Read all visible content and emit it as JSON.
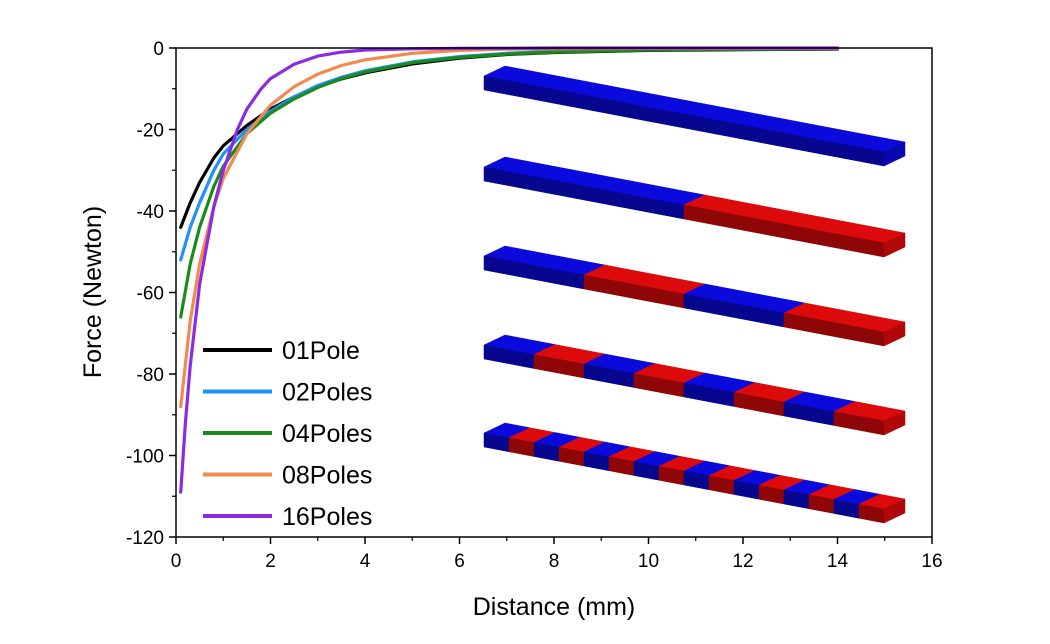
{
  "chart_data": {
    "type": "line",
    "xlabel": "Distance (mm)",
    "ylabel": "Force (Newton)",
    "xlim": [
      0,
      16
    ],
    "ylim": [
      -120,
      0
    ],
    "x_ticks": [
      0,
      2,
      4,
      6,
      8,
      10,
      12,
      14,
      16
    ],
    "y_ticks": [
      0,
      -20,
      -40,
      -60,
      -80,
      -100,
      -120
    ],
    "grid": false,
    "legend_position": "bottom-left",
    "series": [
      {
        "name": "01Pole",
        "color": "#000000",
        "x": [
          0.1,
          0.3,
          0.5,
          0.8,
          1.0,
          1.5,
          2.0,
          2.5,
          3.0,
          3.5,
          4.0,
          5.0,
          6.0,
          7.0,
          8.0,
          10.0,
          12.0,
          14.0
        ],
        "y": [
          -44,
          -38,
          -33,
          -27,
          -24,
          -19,
          -15,
          -12,
          -9.5,
          -7.6,
          -6.1,
          -3.9,
          -2.5,
          -1.6,
          -1.1,
          -0.6,
          -0.4,
          -0.3
        ]
      },
      {
        "name": "02Poles",
        "color": "#1e90ff",
        "x": [
          0.1,
          0.3,
          0.5,
          0.8,
          1.0,
          1.5,
          2.0,
          2.5,
          3.0,
          3.5,
          4.0,
          5.0,
          6.0,
          7.0,
          8.0,
          10.0,
          12.0,
          14.0
        ],
        "y": [
          -52,
          -44,
          -38,
          -30,
          -26,
          -20,
          -15.5,
          -12,
          -9.2,
          -7.2,
          -5.6,
          -3.4,
          -2.1,
          -1.3,
          -0.8,
          -0.4,
          -0.3,
          -0.2
        ]
      },
      {
        "name": "04Poles",
        "color": "#1a8a1a",
        "x": [
          0.1,
          0.3,
          0.5,
          0.8,
          1.0,
          1.5,
          2.0,
          2.5,
          3.0,
          3.5,
          4.0,
          5.0,
          6.0,
          7.0,
          8.0,
          10.0,
          12.0,
          14.0
        ],
        "y": [
          -66,
          -53,
          -44,
          -34,
          -29,
          -21,
          -16,
          -12.5,
          -9.7,
          -7.5,
          -5.9,
          -3.6,
          -2.3,
          -1.5,
          -1.0,
          -0.5,
          -0.3,
          -0.2
        ]
      },
      {
        "name": "08Poles",
        "color": "#f28a4e",
        "x": [
          0.1,
          0.3,
          0.5,
          0.8,
          1.0,
          1.5,
          2.0,
          2.5,
          3.0,
          3.5,
          4.0,
          5.0,
          6.0,
          7.0,
          8.0,
          10.0,
          12.0,
          14.0
        ],
        "y": [
          -88,
          -67,
          -53,
          -39,
          -32,
          -21,
          -14,
          -9.5,
          -6.4,
          -4.3,
          -2.9,
          -1.3,
          -0.6,
          -0.3,
          -0.2,
          -0.1,
          -0.1,
          -0.1
        ]
      },
      {
        "name": "16Poles",
        "color": "#8a2be2",
        "x": [
          0.1,
          0.2,
          0.3,
          0.5,
          0.8,
          1.0,
          1.3,
          1.5,
          1.8,
          2.0,
          2.5,
          3.0,
          3.5,
          4.0,
          5.0,
          6.0,
          8.0,
          10.0,
          12.0,
          14.0
        ],
        "y": [
          -109,
          -92,
          -78,
          -58,
          -39,
          -30,
          -20,
          -15,
          -10,
          -7.5,
          -4,
          -2,
          -1,
          -0.5,
          -0.2,
          -0.1,
          0,
          0,
          0,
          0
        ]
      }
    ]
  },
  "inset": {
    "description_colors": {
      "north": "#0a0adc",
      "south": "#dc0a0a"
    },
    "magnets": [
      {
        "name": "magnet-1-pole",
        "segments": 1
      },
      {
        "name": "magnet-2-poles",
        "segments": 2
      },
      {
        "name": "magnet-4-poles",
        "segments": 4
      },
      {
        "name": "magnet-8-poles",
        "segments": 8
      },
      {
        "name": "magnet-16-poles",
        "segments": 16
      }
    ]
  }
}
